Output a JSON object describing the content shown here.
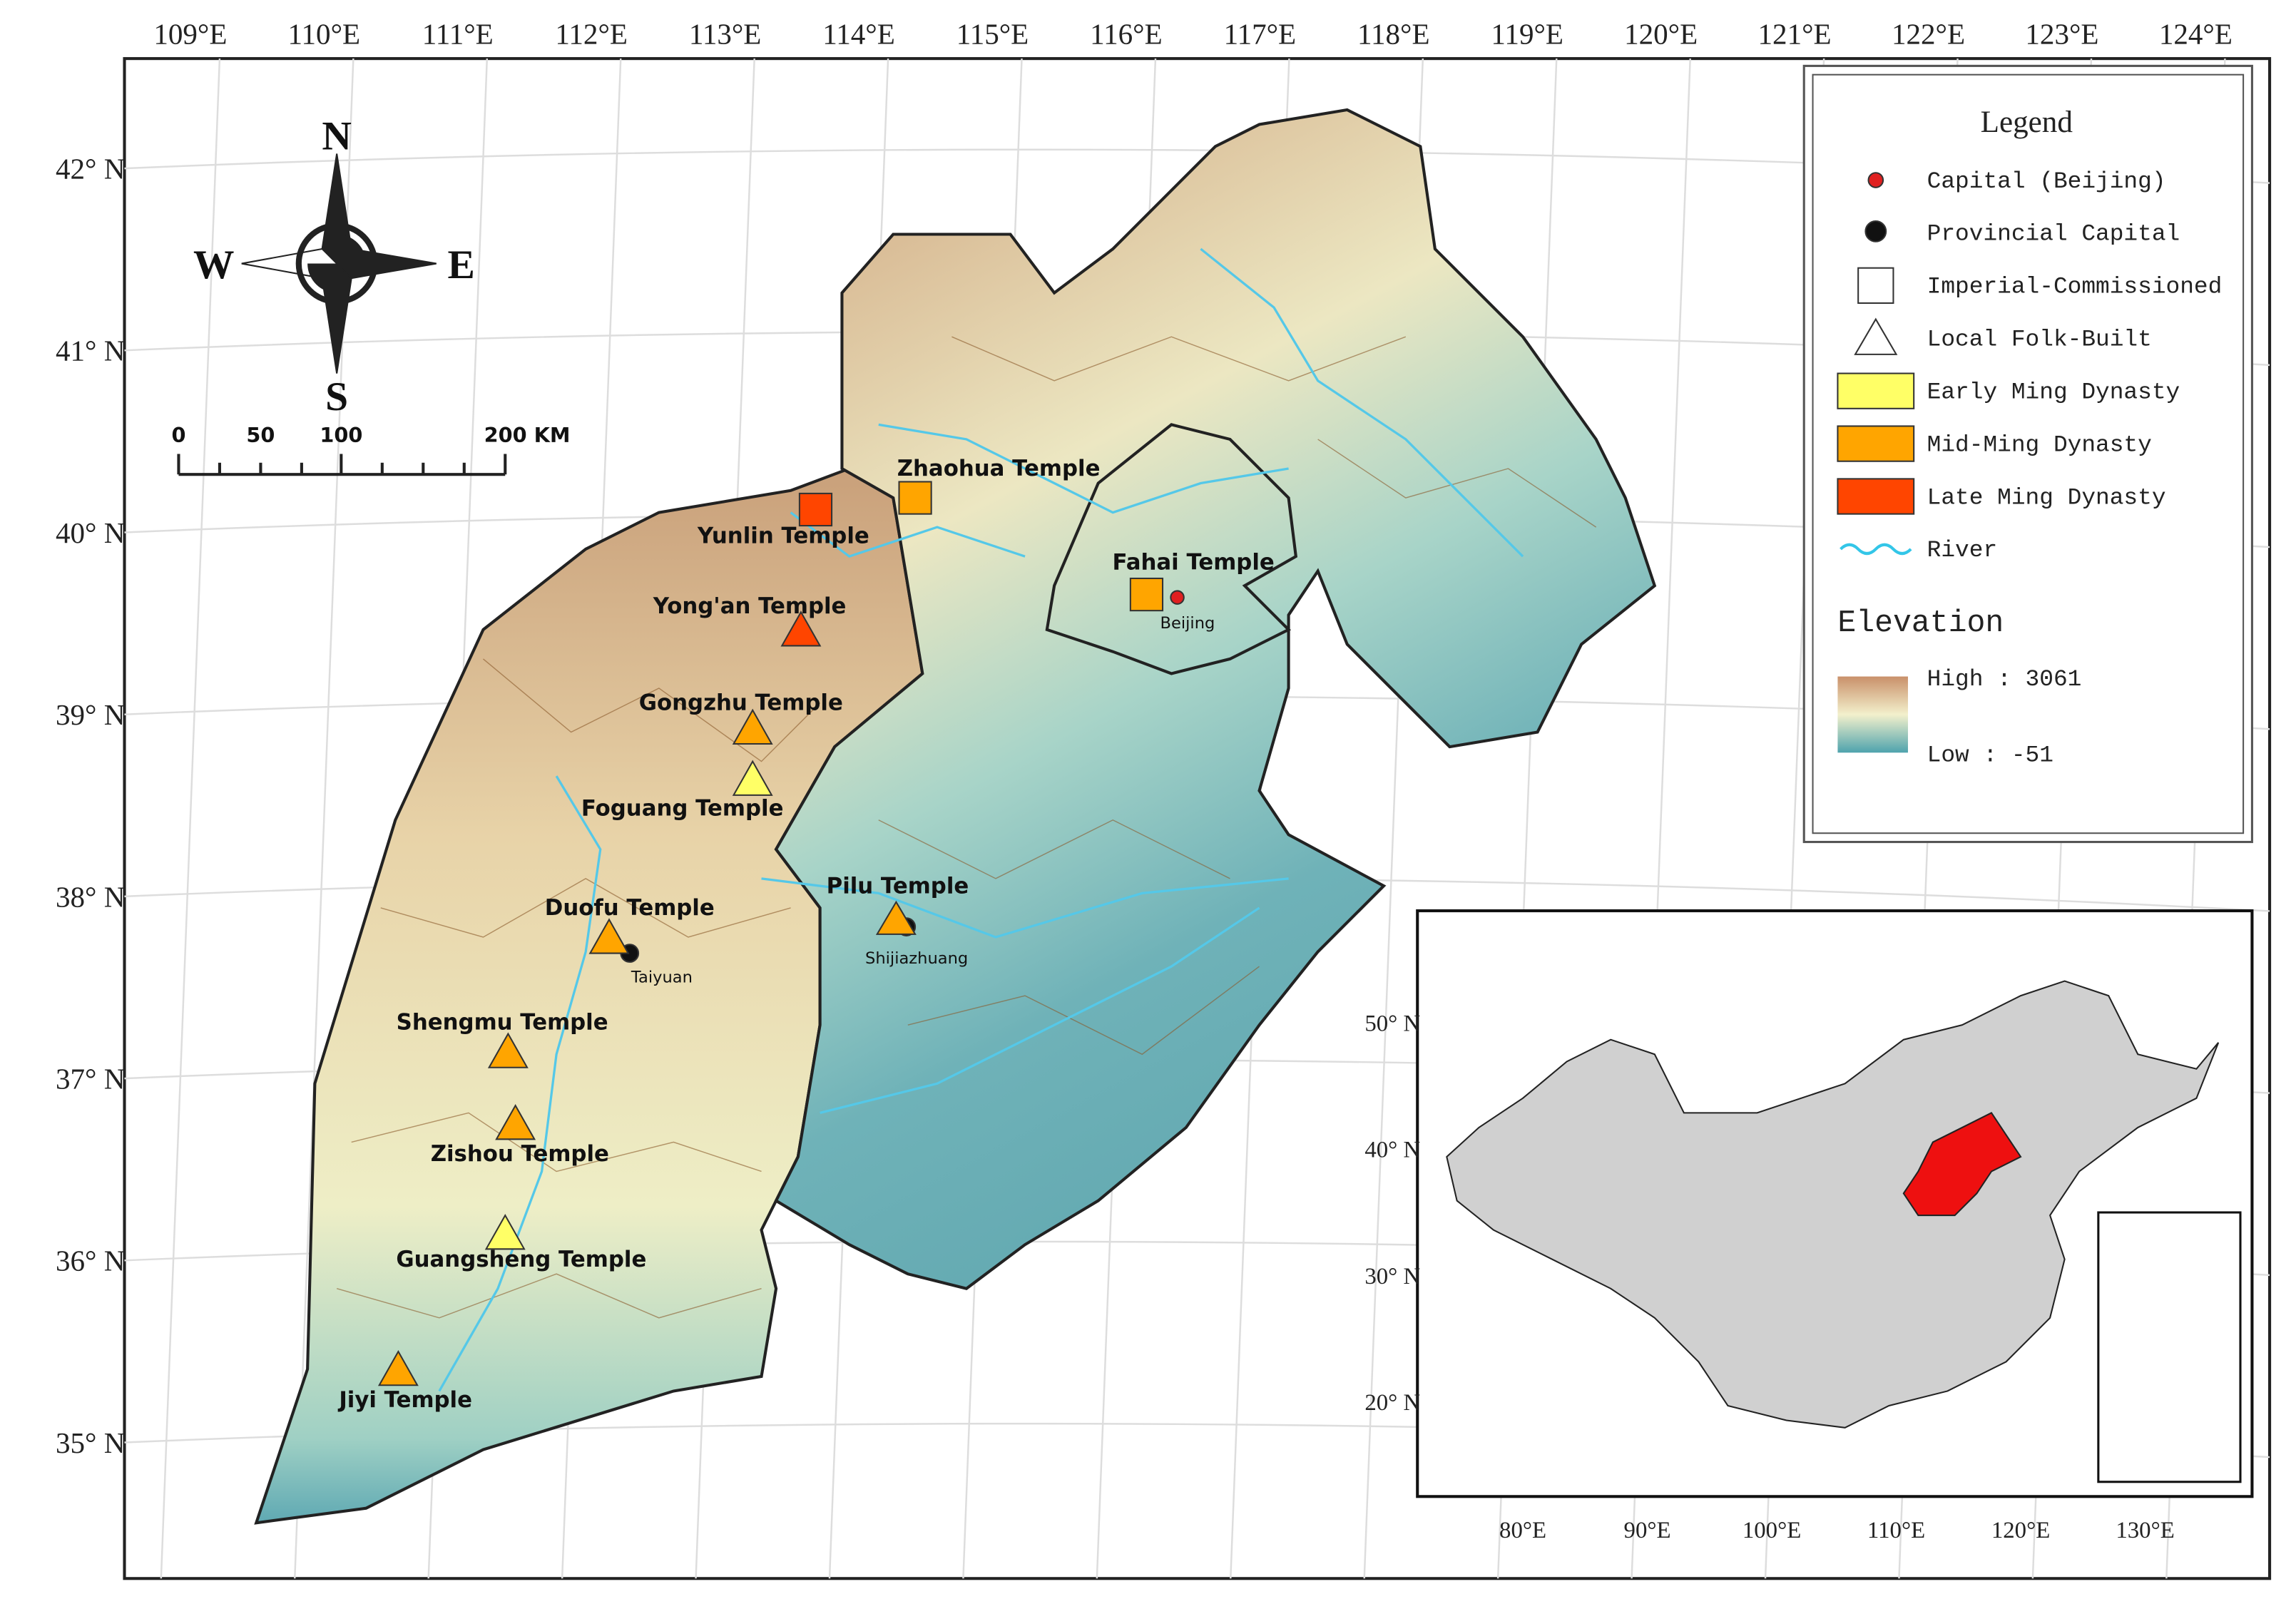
{
  "map": {
    "lon_labels": [
      "109°E",
      "110°E",
      "111°E",
      "112°E",
      "113°E",
      "114°E",
      "115°E",
      "116°E",
      "117°E",
      "118°E",
      "119°E",
      "120°E",
      "121°E",
      "122°E",
      "123°E",
      "124°E"
    ],
    "lat_labels": [
      "42° N",
      "41° N",
      "40° N",
      "39° N",
      "38° N",
      "37° N",
      "36° N",
      "35° N"
    ],
    "compass": {
      "n": "N",
      "s": "S",
      "w": "W",
      "e": "E"
    },
    "scale_bar": [
      "0",
      "50",
      "100",
      "200 KM"
    ],
    "legend": {
      "title": "Legend",
      "items": [
        "Capital (Beijing)",
        "Provincial Capital",
        "Imperial-Commissioned",
        "Local Folk-Built",
        "Early Ming Dynasty",
        "Mid-Ming Dynasty",
        "Late Ming Dynasty",
        "River"
      ],
      "elevation_title": "Elevation",
      "elevation_high": "High : 3061",
      "elevation_low": "Low : -51"
    },
    "temples": [
      "Zhaohua Temple",
      "Yunlin Temple",
      "Yong'an Temple",
      "Fahai Temple",
      "Gongzhu Temple",
      "Foguang Temple",
      "Pilu Temple",
      "Duofu Temple",
      "Shengmu Temple",
      "Zishou Temple",
      "Guangsheng Temple",
      "Jiyi Temple"
    ],
    "cities": [
      "Beijing",
      "Taiyuan",
      "Shijiazhuang"
    ],
    "inset": {
      "lat_labels": [
        "50° N",
        "40° N",
        "30° N",
        "20° N"
      ],
      "lon_labels": [
        "80°E",
        "90°E",
        "100°E",
        "110°E",
        "120°E",
        "130°E"
      ]
    }
  }
}
